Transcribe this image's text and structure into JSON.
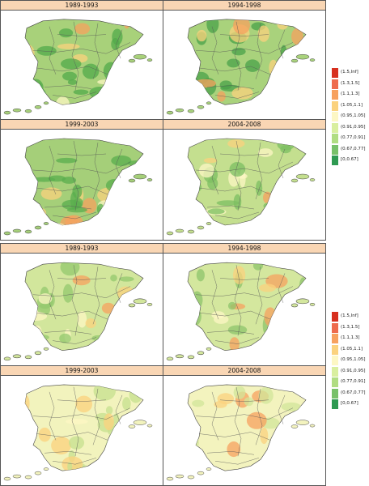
{
  "figures": [
    {
      "panels": [
        {
          "period": "1989-1993",
          "fill": "#a8d17a",
          "tint": "#52a94b"
        },
        {
          "period": "1994-1998",
          "fill": "#a9d27c",
          "tint": "#4aa24a"
        },
        {
          "period": "1999-2003",
          "fill": "#a5cf79",
          "tint": "#5aae4d"
        },
        {
          "period": "2004-2008",
          "fill": "#c4df8f",
          "tint": "#7cbf62"
        }
      ],
      "legend": [
        {
          "label": "(1.5,Inf]",
          "color": "#d7301f"
        },
        {
          "label": "(1.3,1.5]",
          "color": "#ee6b4d"
        },
        {
          "label": "(1.1,1.3]",
          "color": "#f7a15f"
        },
        {
          "label": "(1.05,1.1]",
          "color": "#fbd27e"
        },
        {
          "label": "(0.95,1.05]",
          "color": "#fdf7c4"
        },
        {
          "label": "(0.91,0.95]",
          "color": "#d9ef9f"
        },
        {
          "label": "(0.77,0.91]",
          "color": "#b0dd82"
        },
        {
          "label": "(0.67,0.77]",
          "color": "#78c16a"
        },
        {
          "label": "[0,0.67]",
          "color": "#2f9a52"
        }
      ]
    },
    {
      "panels": [
        {
          "period": "1989-1993",
          "fill": "#d2e69c",
          "tint": "#93c86e"
        },
        {
          "period": "1994-1998",
          "fill": "#d4e79e",
          "tint": "#8dc46b"
        },
        {
          "period": "1999-2003",
          "fill": "#f2f3bd",
          "tint": "#c6e08f"
        },
        {
          "period": "2004-2008",
          "fill": "#f3f3be",
          "tint": "#d2e699"
        }
      ],
      "legend": [
        {
          "label": "(1.5,Inf]",
          "color": "#d7301f"
        },
        {
          "label": "(1.3,1.5]",
          "color": "#ee6b4d"
        },
        {
          "label": "(1.1,1.3]",
          "color": "#f7a15f"
        },
        {
          "label": "(1.05,1.1]",
          "color": "#fbd27e"
        },
        {
          "label": "(0.95,1.05]",
          "color": "#fdf7c4"
        },
        {
          "label": "(0.91,0.95]",
          "color": "#d9ef9f"
        },
        {
          "label": "(0.77,0.91]",
          "color": "#b0dd82"
        },
        {
          "label": "(0.67,0.77]",
          "color": "#78c16a"
        },
        {
          "label": "[0,0.67]",
          "color": "#2f9a52"
        }
      ]
    }
  ]
}
